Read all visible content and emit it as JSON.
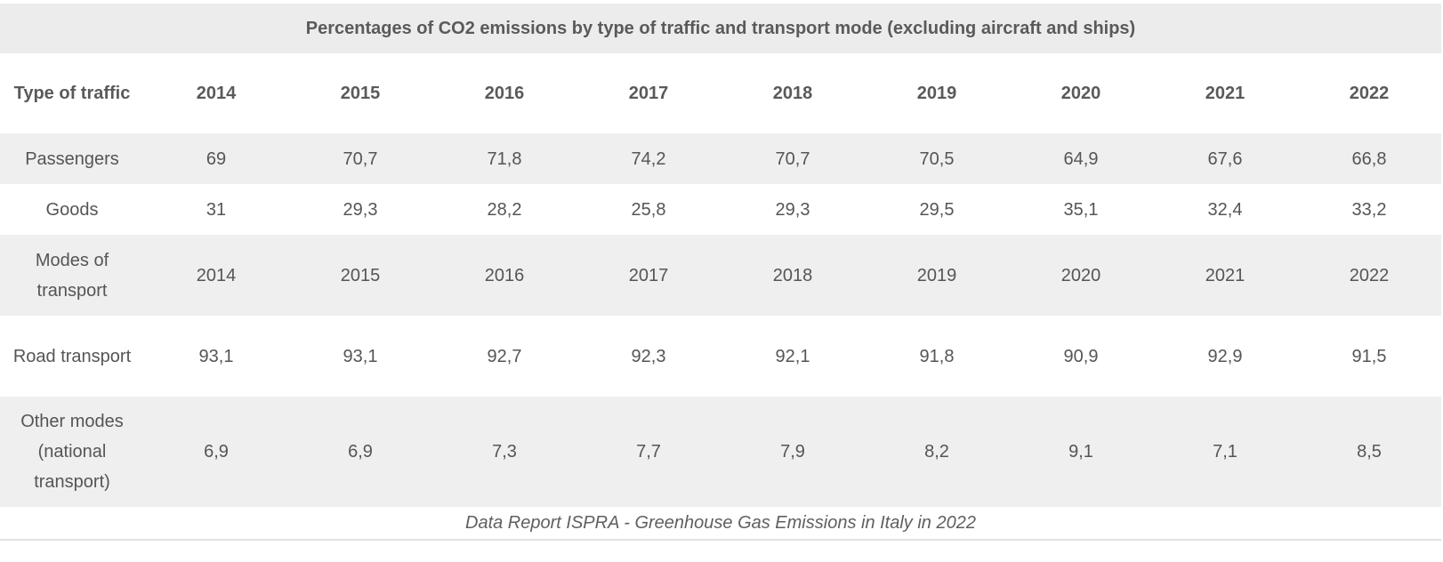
{
  "table": {
    "title": "Percentages of CO2 emissions by type of traffic and transport mode (excluding aircraft and ships)",
    "header": {
      "label": "Type of traffic",
      "years": [
        "2014",
        "2015",
        "2016",
        "2017",
        "2018",
        "2019",
        "2020",
        "2021",
        "2022"
      ]
    },
    "rows": [
      {
        "label": "Passengers",
        "values": [
          "69",
          "70,7",
          "71,8",
          "74,2",
          "70,7",
          "70,5",
          "64,9",
          "67,6",
          "66,8"
        ]
      },
      {
        "label": "Goods",
        "values": [
          "31",
          "29,3",
          "28,2",
          "25,8",
          "29,3",
          "29,5",
          "35,1",
          "32,4",
          "33,2"
        ]
      },
      {
        "label": "Modes of transport",
        "values": [
          "2014",
          "2015",
          "2016",
          "2017",
          "2018",
          "2019",
          "2020",
          "2021",
          "2022"
        ]
      },
      {
        "label": "Road transport",
        "values": [
          "93,1",
          "93,1",
          "92,7",
          "92,3",
          "92,1",
          "91,8",
          "90,9",
          "92,9",
          "91,5"
        ]
      },
      {
        "label": "Other modes (national transport)",
        "values": [
          "6,9",
          "6,9",
          "7,3",
          "7,7",
          "7,9",
          "8,2",
          "9,1",
          "7,1",
          "8,5"
        ]
      }
    ],
    "caption": "Data Report ISPRA - Greenhouse Gas Emissions in Italy in 2022"
  }
}
